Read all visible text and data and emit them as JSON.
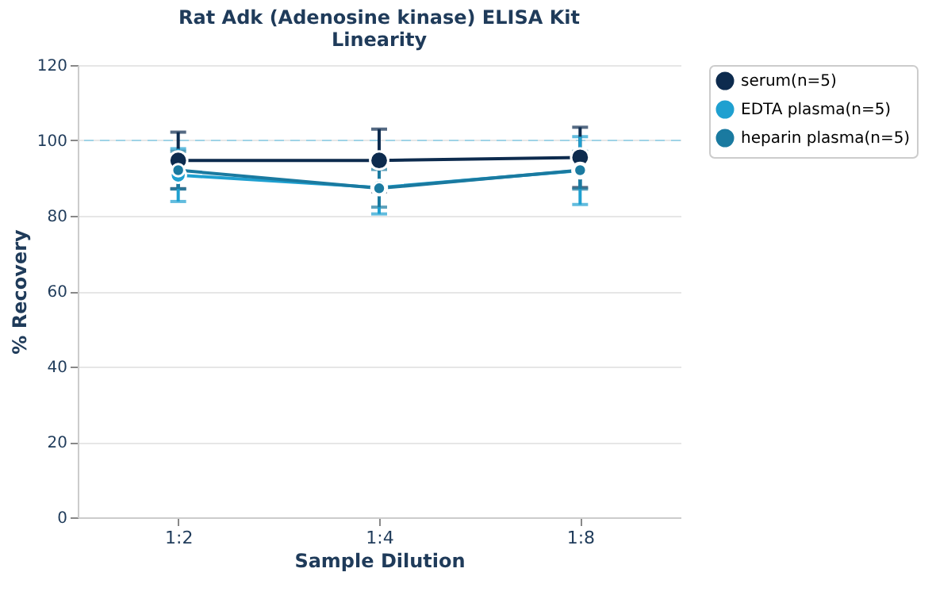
{
  "chart_data": {
    "type": "line",
    "title": [
      "Rat Adk (Adenosine kinase) ELISA Kit",
      "Linearity"
    ],
    "xlabel": "Sample Dilution",
    "ylabel": "% Recovery",
    "categories": [
      "1:2",
      "1:4",
      "1:8"
    ],
    "series": [
      {
        "name": "serum(n=5)",
        "color": "#0d2b4e",
        "values": [
          94.7,
          94.7,
          95.5
        ],
        "errors": [
          7.5,
          8.3,
          8
        ]
      },
      {
        "name": "EDTA plasma(n=5)",
        "color": "#1fa0d0",
        "values": [
          90.8,
          87.5,
          92
        ],
        "errors": [
          7,
          7,
          9
        ]
      },
      {
        "name": "heparin plasma(n=5)",
        "color": "#1a7aa0",
        "values": [
          92.1,
          87.3,
          92.1
        ],
        "errors": [
          5,
          5,
          5
        ]
      }
    ],
    "ylim": [
      0,
      120
    ],
    "yticks": [
      0,
      20,
      40,
      60,
      80,
      100,
      120
    ],
    "grid": "y",
    "legend": "top right",
    "marker": "circle",
    "line_style": "solid",
    "ref_lines": [
      {
        "axis": "y",
        "value": 100,
        "color": "#9fd3e6",
        "line_style": "dashed"
      }
    ]
  }
}
